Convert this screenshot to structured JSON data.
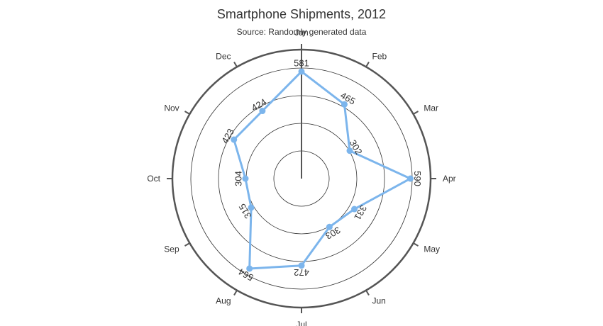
{
  "chart_data": {
    "type": "polar-line",
    "title": "Smartphone Shipments, 2012",
    "subtitle": "Source: Randomly generated data",
    "categories": [
      "Jan",
      "Feb",
      "Mar",
      "Apr",
      "May",
      "Jun",
      "Jul",
      "Aug",
      "Sep",
      "Oct",
      "Nov",
      "Dec"
    ],
    "series": [
      {
        "values": [
          581,
          465,
          302,
          590,
          331,
          303,
          472,
          564,
          315,
          304,
          423,
          424
        ]
      }
    ],
    "radial_range": [
      0,
      700
    ],
    "radial_grid_values": [
      150,
      300,
      450,
      600
    ],
    "grid": true,
    "legend": "none",
    "colors": {
      "series": "#7cb5ec",
      "axis": "#555555",
      "grid": "#333333"
    }
  }
}
